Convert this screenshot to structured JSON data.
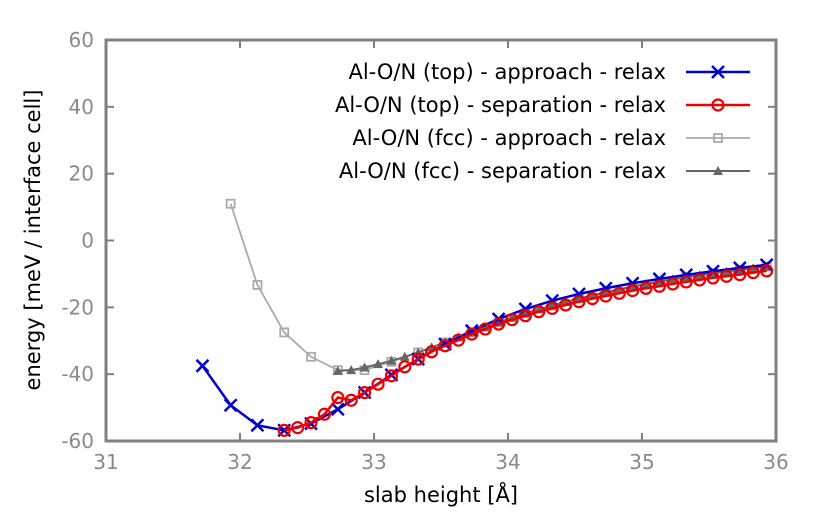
{
  "chart_data": {
    "type": "line",
    "title": "",
    "xlabel": "slab height [Å]",
    "ylabel": "energy [meV / interface cell]",
    "xlim": [
      31,
      36
    ],
    "ylim": [
      -60,
      60
    ],
    "xticks": [
      31,
      32,
      33,
      34,
      35,
      36
    ],
    "yticks": [
      -60,
      -40,
      -20,
      0,
      20,
      40,
      60
    ],
    "grid": false,
    "legend_position": "top-right",
    "series": [
      {
        "name": "Al-O/N (top) - approach - relax",
        "color": "#0000cc",
        "marker": "x",
        "x": [
          31.72,
          31.93,
          32.13,
          32.33,
          32.53,
          32.73,
          32.93,
          33.13,
          33.33,
          33.53,
          33.73,
          33.93,
          34.13,
          34.33,
          34.53,
          34.73,
          34.93,
          35.13,
          35.33,
          35.53,
          35.73,
          35.93
        ],
        "y": [
          -37.5,
          -49.3,
          -55.3,
          -56.8,
          -54.8,
          -50.5,
          -45.5,
          -40.2,
          -35.5,
          -31.0,
          -27.0,
          -23.5,
          -20.5,
          -18.0,
          -16.0,
          -14.3,
          -12.8,
          -11.5,
          -10.3,
          -9.2,
          -8.2,
          -7.3
        ]
      },
      {
        "name": "Al-O/N (top) - separation - relax",
        "color": "#ee0000",
        "marker": "circle",
        "x": [
          32.33,
          32.43,
          32.53,
          32.63,
          32.73,
          32.83,
          32.93,
          33.03,
          33.13,
          33.23,
          33.33,
          33.43,
          33.53,
          33.63,
          33.73,
          33.83,
          33.93,
          34.03,
          34.13,
          34.23,
          34.33,
          34.43,
          34.53,
          34.63,
          34.73,
          34.83,
          34.93,
          35.03,
          35.13,
          35.23,
          35.33,
          35.43,
          35.53,
          35.63,
          35.73,
          35.83,
          35.93
        ],
        "y": [
          -56.8,
          -56.0,
          -54.5,
          -52.0,
          -47.0,
          -47.8,
          -45.5,
          -43.0,
          -40.5,
          -37.8,
          -35.5,
          -33.3,
          -31.5,
          -29.8,
          -28.0,
          -26.5,
          -25.0,
          -23.7,
          -22.5,
          -21.3,
          -20.3,
          -19.3,
          -18.3,
          -17.4,
          -16.6,
          -15.8,
          -15.0,
          -14.3,
          -13.7,
          -13.0,
          -12.4,
          -11.8,
          -11.2,
          -10.7,
          -10.2,
          -9.6,
          -9.1
        ]
      },
      {
        "name": "Al-O/N (fcc) - approach - relax",
        "color": "#aaaaaa",
        "marker": "square",
        "x": [
          31.93,
          32.13,
          32.33,
          32.53,
          32.73,
          32.93,
          33.13,
          33.33,
          33.53,
          33.73,
          33.93,
          34.13,
          34.33,
          34.53,
          34.73,
          34.93,
          35.13,
          35.33,
          35.53,
          35.73,
          35.93
        ],
        "y": [
          11.0,
          -13.3,
          -27.5,
          -34.8,
          -38.8,
          -38.8,
          -36.3,
          -33.5,
          -30.5,
          -27.5,
          -24.5,
          -21.8,
          -19.5,
          -17.3,
          -15.5,
          -13.8,
          -12.3,
          -11.0,
          -9.8,
          -8.8,
          -7.8
        ]
      },
      {
        "name": "Al-O/N (fcc) - separation - relax",
        "color": "#666666",
        "marker": "triangle",
        "x": [
          32.73,
          32.83,
          32.93,
          33.03,
          33.13,
          33.23,
          33.33,
          33.43,
          33.53,
          33.63,
          33.73,
          33.83,
          33.93,
          34.03,
          34.13,
          34.23,
          34.33,
          34.43,
          34.53,
          34.63,
          34.73,
          34.83,
          34.93,
          35.03,
          35.13,
          35.23,
          35.33,
          35.43,
          35.53,
          35.63,
          35.73,
          35.83,
          35.93
        ],
        "y": [
          -39.0,
          -38.8,
          -38.0,
          -37.0,
          -36.0,
          -34.8,
          -33.5,
          -32.0,
          -30.5,
          -29.0,
          -27.5,
          -26.0,
          -24.5,
          -23.1,
          -21.8,
          -20.6,
          -19.5,
          -18.4,
          -17.4,
          -16.4,
          -15.5,
          -14.6,
          -13.8,
          -13.0,
          -12.3,
          -11.6,
          -11.0,
          -10.4,
          -9.8,
          -9.3,
          -8.8,
          -8.3,
          -7.8
        ]
      }
    ]
  }
}
